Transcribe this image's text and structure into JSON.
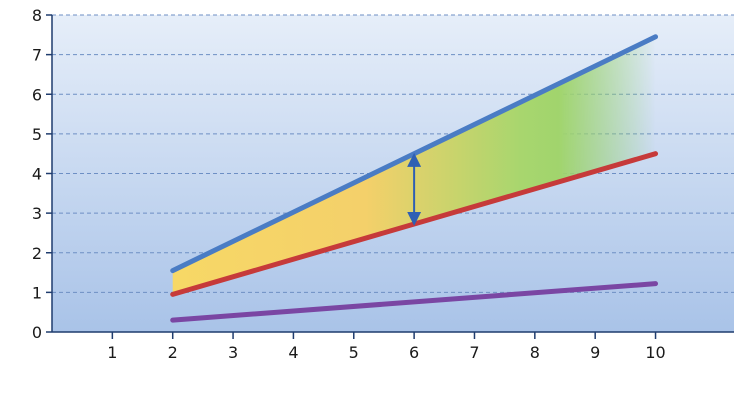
{
  "chart_data": {
    "type": "line",
    "title": "",
    "xlabel": "",
    "ylabel": "",
    "xlim": [
      0,
      11.3
    ],
    "ylim": [
      0,
      8
    ],
    "x_ticks": [
      1,
      2,
      3,
      4,
      5,
      6,
      7,
      8,
      9,
      10
    ],
    "y_ticks": [
      0,
      1,
      2,
      3,
      4,
      5,
      6,
      7,
      8
    ],
    "grid": "horizontal dashed",
    "series": [
      {
        "color": "#4a7cc4",
        "x": [
          2,
          10
        ],
        "y": [
          1.55,
          7.45
        ]
      },
      {
        "color": "#c63a3a",
        "x": [
          2,
          10
        ],
        "y": [
          0.95,
          4.5
        ]
      },
      {
        "color": "#7a46a3",
        "x": [
          2,
          10
        ],
        "y": [
          0.3,
          1.22
        ]
      }
    ],
    "shaded_band": {
      "between_series": [
        0,
        1
      ],
      "x_range": [
        2,
        10
      ],
      "gradient": [
        "#f7d866",
        "#f4d06a",
        "#a8d66e",
        "#8fd06a"
      ]
    },
    "annotation": {
      "type": "double-arrow",
      "x": 6,
      "y_from": 2.75,
      "y_to": 4.45,
      "color": "#2f5fb3"
    }
  }
}
